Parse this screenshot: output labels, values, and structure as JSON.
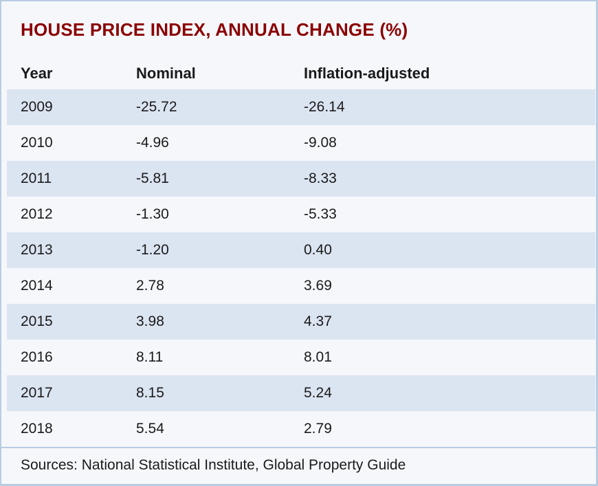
{
  "title": "HOUSE PRICE INDEX, ANNUAL CHANGE (%)",
  "table": {
    "columns": [
      "Year",
      "Nominal",
      "Inflation-adjusted"
    ],
    "rows": [
      [
        "2009",
        "-25.72",
        "-26.14"
      ],
      [
        "2010",
        "-4.96",
        "-9.08"
      ],
      [
        "2011",
        "-5.81",
        "-8.33"
      ],
      [
        "2012",
        "-1.30",
        "-5.33"
      ],
      [
        "2013",
        "-1.20",
        "0.40"
      ],
      [
        "2014",
        "2.78",
        "3.69"
      ],
      [
        "2015",
        "3.98",
        "4.37"
      ],
      [
        "2016",
        "8.11",
        "8.01"
      ],
      [
        "2017",
        "8.15",
        "5.24"
      ],
      [
        "2018",
        "5.54",
        "2.79"
      ]
    ]
  },
  "footer": "Sources: National Statistical Institute, Global Property Guide",
  "colors": {
    "title_accent": "#8b0000",
    "row_alt_blue": "#dbe4f1",
    "row_base": "#f5f7fb",
    "border": "#b8cce2",
    "text": "#1a1a1a"
  },
  "chart_data": {
    "type": "table",
    "title": "HOUSE PRICE INDEX, ANNUAL CHANGE (%)",
    "categories": [
      "2009",
      "2010",
      "2011",
      "2012",
      "2013",
      "2014",
      "2015",
      "2016",
      "2017",
      "2018"
    ],
    "series": [
      {
        "name": "Nominal",
        "values": [
          -25.72,
          -4.96,
          -5.81,
          -1.3,
          -1.2,
          2.78,
          3.98,
          8.11,
          8.15,
          5.54
        ]
      },
      {
        "name": "Inflation-adjusted",
        "values": [
          -26.14,
          -9.08,
          -8.33,
          -5.33,
          0.4,
          3.69,
          4.37,
          8.01,
          5.24,
          2.79
        ]
      }
    ],
    "unit": "%",
    "source_note": "Sources: National Statistical Institute, Global Property Guide"
  }
}
